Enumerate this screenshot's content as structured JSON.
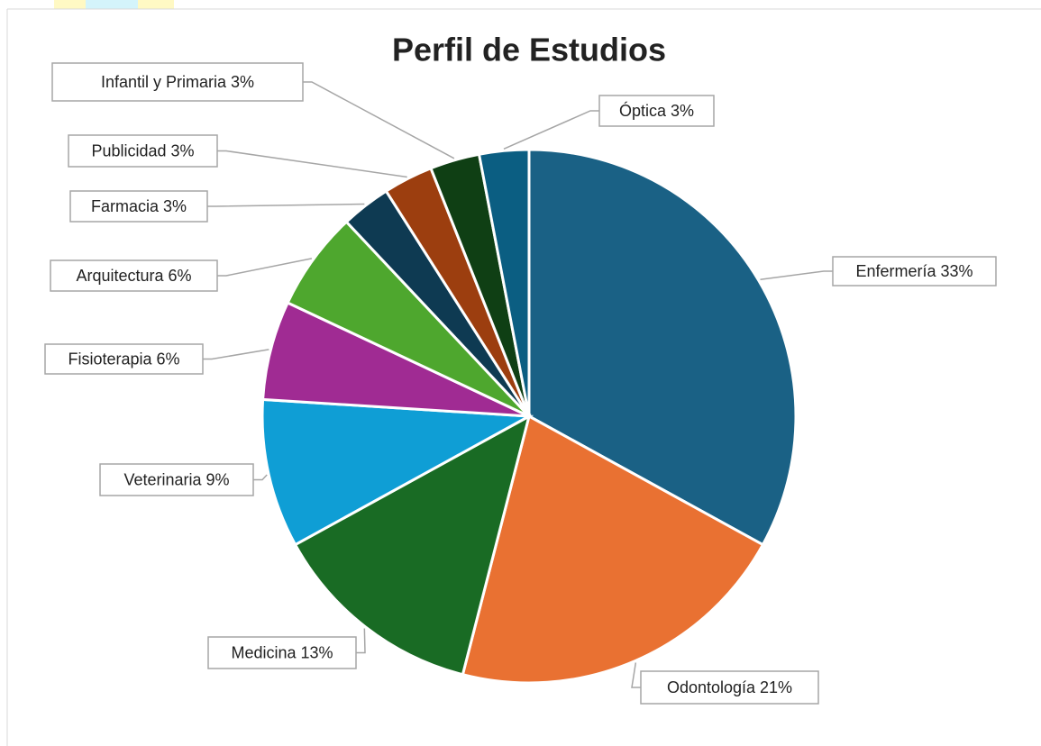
{
  "chart_data": {
    "type": "pie",
    "title": "Perfil de Estudios",
    "categories": [
      "Enfermería",
      "Odontología",
      "Medicina",
      "Veterinaria",
      "Fisioterapia",
      "Arquitectura",
      "Farmacia",
      "Publicidad",
      "Infantil y Primaria",
      "Óptica"
    ],
    "values": [
      33,
      21,
      13,
      9,
      6,
      6,
      3,
      3,
      3,
      3
    ],
    "value_labels": [
      "33%",
      "21%",
      "13%",
      "9%",
      "6%",
      "6%",
      "3%",
      "3%",
      "3%",
      "3%"
    ],
    "colors": [
      "#1a6185",
      "#e97132",
      "#196b24",
      "#0f9ed5",
      "#a02b93",
      "#4ea72e",
      "#0e3a52",
      "#9c3e0f",
      "#0f3f14",
      "#0b5e82"
    ]
  }
}
